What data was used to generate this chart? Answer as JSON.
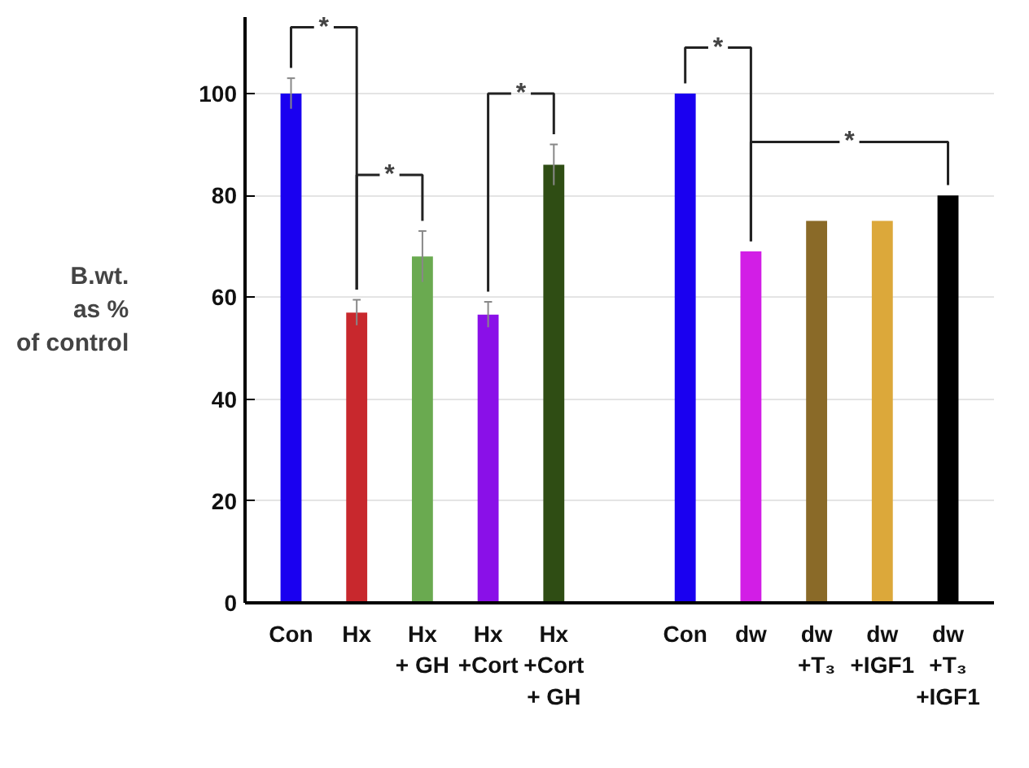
{
  "chart_data": {
    "type": "bar",
    "ylabel": "B.wt.\nas %\nof control",
    "categories": [
      "Con",
      "Hx",
      "Hx\n+ GH",
      "Hx\n+Cort",
      "Hx\n+Cort\n+ GH",
      null,
      "Con",
      "dw",
      "dw\n+T₃",
      "dw\n+IGF1",
      "dw\n+T₃\n+IGF1"
    ],
    "values": [
      100,
      57,
      68,
      56.6,
      86,
      null,
      100,
      69,
      75,
      75,
      80
    ],
    "colors": [
      "#1a00f0",
      "#c8282d",
      "#6aaa50",
      "#8a10e8",
      "#2f4d14",
      null,
      "#1a00f0",
      "#d21ee6",
      "#8a6a28",
      "#dca83a",
      "#000000"
    ],
    "errors": [
      3,
      2.5,
      5,
      2.5,
      4,
      null,
      null,
      null,
      null,
      null,
      null
    ],
    "ylim": [
      0,
      115
    ],
    "yticks": [
      0,
      20,
      40,
      60,
      80,
      100
    ],
    "grid": "y",
    "annotations": [
      "*",
      "*",
      "*",
      "*",
      "*"
    ]
  }
}
